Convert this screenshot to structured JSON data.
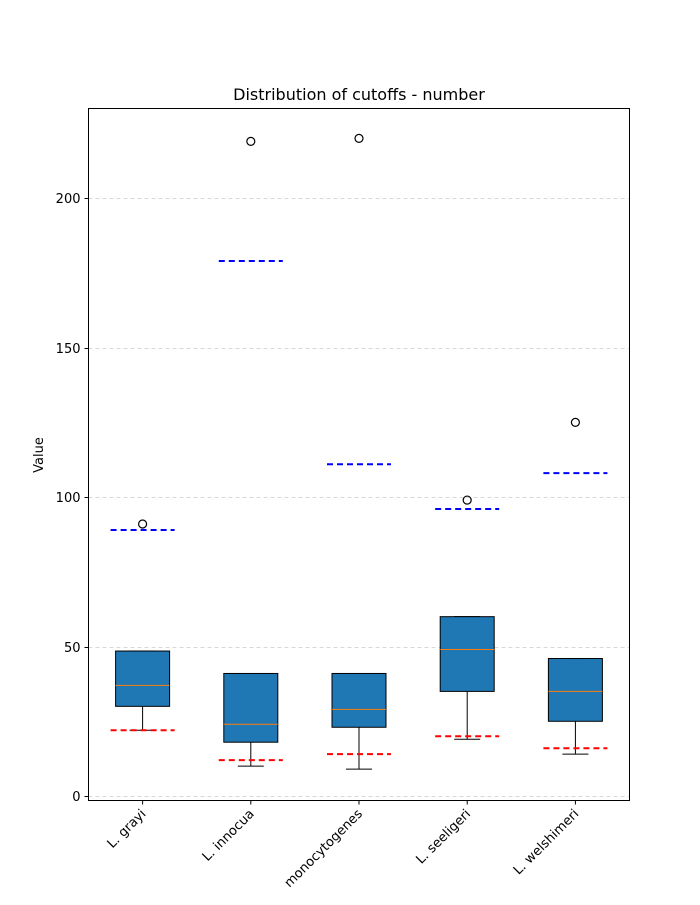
{
  "chart_data": {
    "type": "box",
    "title": "Distribution of cutoffs - number",
    "xlabel": "",
    "ylabel": "Value",
    "ylim": [
      -1.5,
      230
    ],
    "yticks": [
      0,
      50,
      100,
      150,
      200
    ],
    "grid": "horizontal dashed",
    "categories": [
      "L. grayi",
      "L. innocua",
      "monocytogenes",
      "L. seeligeri",
      "L. welshimeri"
    ],
    "boxes": [
      {
        "category": "L. grayi",
        "whisker_low": 22,
        "q1": 30,
        "median": 37,
        "q3": 48.5,
        "whisker_high": 48.5,
        "outliers": [
          91
        ],
        "blue_line": 89,
        "red_line": 22
      },
      {
        "category": "L. innocua",
        "whisker_low": 10,
        "q1": 18,
        "median": 24,
        "q3": 41,
        "whisker_high": 41,
        "outliers": [
          219
        ],
        "blue_line": 179,
        "red_line": 12
      },
      {
        "category": "monocytogenes",
        "whisker_low": 9,
        "q1": 23,
        "median": 29,
        "q3": 41,
        "whisker_high": 41,
        "outliers": [
          220
        ],
        "blue_line": 111,
        "red_line": 14
      },
      {
        "category": "L. seeligeri",
        "whisker_low": 19,
        "q1": 35,
        "median": 49,
        "q3": 60,
        "whisker_high": 60,
        "outliers": [
          99
        ],
        "blue_line": 96,
        "red_line": 20
      },
      {
        "category": "L. welshimeri",
        "whisker_low": 14,
        "q1": 25,
        "median": 35,
        "q3": 46,
        "whisker_high": 46,
        "outliers": [
          125
        ],
        "blue_line": 108,
        "red_line": 16
      }
    ],
    "colors": {
      "box_fill": "#1f77b4",
      "median": "#ff7f0e",
      "blue_line": "#0000ff",
      "red_line": "#ff0000",
      "grid": "#cccccc"
    }
  }
}
